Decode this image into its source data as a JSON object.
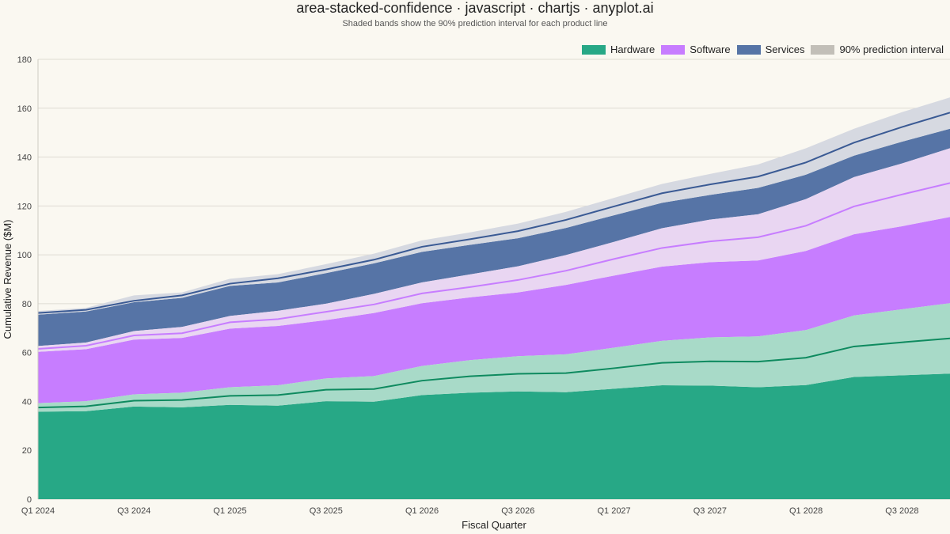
{
  "chart_data": {
    "type": "area",
    "title": "area-stacked-confidence · javascript · chartjs · anyplot.ai",
    "subtitle": "Shaded bands show the 90% prediction interval for each product line",
    "xlabel": "Fiscal Quarter",
    "ylabel": "Cumulative Revenue ($M)",
    "ylim": [
      0,
      180
    ],
    "yticks": [
      0,
      20,
      40,
      60,
      80,
      100,
      120,
      140,
      160,
      180
    ],
    "grid": true,
    "stacked": true,
    "legend_position": "top-right",
    "x": [
      "Q1 2024",
      "Q2 2024",
      "Q3 2024",
      "Q4 2024",
      "Q1 2025",
      "Q2 2025",
      "Q3 2025",
      "Q4 2025",
      "Q1 2026",
      "Q2 2026",
      "Q3 2026",
      "Q4 2026",
      "Q1 2027",
      "Q2 2027",
      "Q3 2027",
      "Q4 2027",
      "Q1 2028",
      "Q2 2028",
      "Q3 2028",
      "Q4 2028"
    ],
    "xtick_labels": [
      "Q1 2024",
      "Q3 2024",
      "Q1 2025",
      "Q3 2025",
      "Q1 2026",
      "Q3 2026",
      "Q1 2027",
      "Q3 2027",
      "Q1 2028",
      "Q3 2028"
    ],
    "series": [
      {
        "name": "Hardware",
        "color": "#27A886",
        "line_color": "#0E8A5F",
        "values": [
          37.5,
          38.0,
          40.3,
          40.6,
          42.3,
          42.6,
          44.8,
          45.1,
          48.5,
          50.3,
          51.3,
          51.6,
          53.6,
          55.8,
          56.4,
          56.3,
          57.9,
          62.5,
          64.2,
          65.8
        ],
        "lower": [
          35.8,
          36.0,
          37.9,
          37.6,
          38.6,
          38.3,
          40.1,
          39.9,
          42.6,
          43.6,
          44.1,
          43.8,
          45.2,
          46.6,
          46.5,
          45.8,
          46.7,
          50.0,
          50.7,
          51.4
        ],
        "upper": [
          39.3,
          40.1,
          42.9,
          43.6,
          45.8,
          46.6,
          49.4,
          50.4,
          54.5,
          56.9,
          58.5,
          59.3,
          62.0,
          64.8,
          66.2,
          66.6,
          69.2,
          75.2,
          77.7,
          80.2
        ]
      },
      {
        "name": "Software",
        "color": "#C77DFF",
        "values": [
          24.0,
          24.8,
          26.7,
          27.3,
          30.1,
          31.1,
          31.9,
          34.6,
          35.7,
          36.5,
          38.4,
          41.9,
          44.7,
          47.0,
          49.1,
          50.9,
          54.0,
          57.3,
          60.5,
          63.6
        ],
        "lower": [
          60.3,
          61.4,
          65.3,
          66.0,
          69.8,
          70.9,
          73.3,
          76.2,
          80.2,
          82.6,
          84.6,
          87.7,
          91.5,
          95.2,
          97.0,
          97.7,
          101.6,
          108.4,
          111.7,
          115.5
        ],
        "upper": [
          62.7,
          64.1,
          68.8,
          70.5,
          75.0,
          77.1,
          80.0,
          84.0,
          88.7,
          92.0,
          95.3,
          99.9,
          105.3,
          110.9,
          114.4,
          116.6,
          122.8,
          131.8,
          137.4,
          143.6
        ],
        "cumulative": [
          61.5,
          62.8,
          67.0,
          67.9,
          72.4,
          73.7,
          76.7,
          79.7,
          84.2,
          86.8,
          89.7,
          93.5,
          98.3,
          102.8,
          105.5,
          107.2,
          111.9,
          119.8,
          124.7,
          129.4
        ]
      },
      {
        "name": "Services",
        "color": "#5674A6",
        "line_color": "#3A5A94",
        "values": [
          14.7,
          14.7,
          14.2,
          15.5,
          15.8,
          16.7,
          17.3,
          18.3,
          19.1,
          19.6,
          20.0,
          20.8,
          21.5,
          22.4,
          23.3,
          24.8,
          25.9,
          26.1,
          27.6,
          28.8
        ],
        "lower": [
          75.5,
          76.8,
          80.6,
          82.4,
          87.3,
          88.7,
          92.5,
          96.5,
          101.2,
          104.1,
          106.8,
          111.0,
          116.2,
          121.3,
          124.5,
          127.4,
          132.8,
          140.6,
          146.3,
          151.6
        ],
        "upper": [
          77.0,
          78.3,
          83.4,
          84.6,
          90.2,
          92.1,
          96.2,
          100.5,
          105.9,
          109.2,
          112.8,
          117.6,
          123.3,
          129.0,
          133.1,
          137.0,
          143.6,
          151.6,
          158.4,
          164.4
        ],
        "cumulative": [
          76.2,
          77.5,
          81.2,
          83.4,
          88.2,
          90.4,
          94.0,
          98.0,
          103.3,
          106.4,
          109.7,
          114.3,
          119.8,
          125.2,
          128.8,
          132.0,
          137.8,
          145.9,
          152.3,
          158.2
        ]
      }
    ],
    "interval_legend": {
      "name": "90% prediction interval",
      "color": "#C2BFB8"
    }
  }
}
